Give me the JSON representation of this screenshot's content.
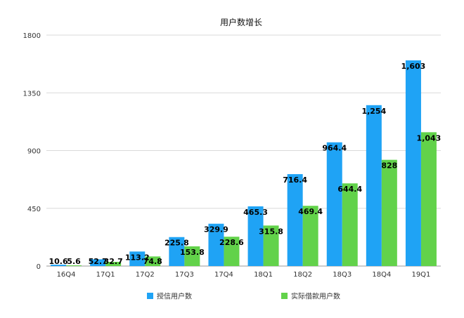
{
  "chart_data": {
    "type": "bar",
    "title": "用户数增长",
    "xlabel": "",
    "ylabel": "",
    "ylim": [
      0,
      1800
    ],
    "yticks": [
      "0",
      "450",
      "900",
      "1350",
      "1800"
    ],
    "categories": [
      "16Q4",
      "17Q1",
      "17Q2",
      "17Q3",
      "17Q4",
      "18Q1",
      "18Q2",
      "18Q3",
      "18Q4",
      "19Q1"
    ],
    "grid": true,
    "legend_position": "bottom",
    "series": [
      {
        "name": "授信用户数",
        "color": "#1fa3f5",
        "values": [
          10.6,
          52.7,
          113.2,
          225.8,
          329.9,
          465.3,
          716.4,
          964.4,
          1254,
          1603
        ],
        "labels": [
          "10.6",
          "52.7",
          "113.2",
          "225.8",
          "329.9",
          "465.3",
          "716.4",
          "964.4",
          "1,254",
          "1,603"
        ]
      },
      {
        "name": "实际借款用户数",
        "color": "#62d24a",
        "values": [
          5.6,
          32.7,
          74.8,
          153.8,
          228.6,
          315.8,
          469.4,
          644.4,
          828,
          1043
        ],
        "labels": [
          "5.6",
          "32.7",
          "74.8",
          "153.8",
          "228.6",
          "315.8",
          "469.4",
          "644.4",
          "828",
          "1,043"
        ]
      }
    ]
  }
}
